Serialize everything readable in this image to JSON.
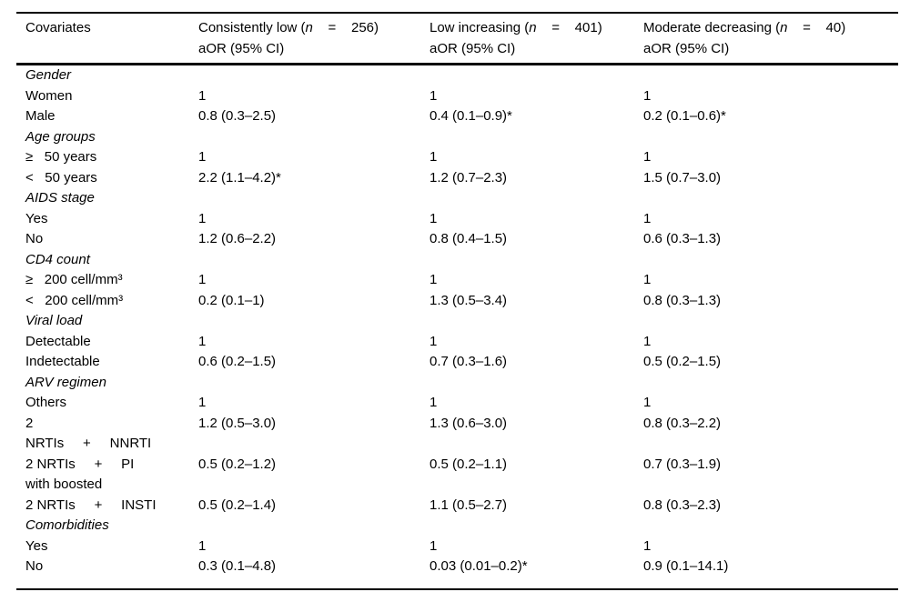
{
  "table": {
    "columns": {
      "covariates": "Covariates",
      "groups": [
        {
          "pre": "Consistently low (",
          "nvar": "n",
          "post": "    =    256)",
          "line2": "aOR (95% CI)"
        },
        {
          "pre": "Low increasing (",
          "nvar": "n",
          "post": "    =    401)",
          "line2": "aOR (95% CI)"
        },
        {
          "pre": "Moderate decreasing (",
          "nvar": "n",
          "post": "    =    40)",
          "line2": "aOR (95% CI)"
        }
      ]
    },
    "rows": [
      {
        "type": "category",
        "label": "Gender",
        "values": [
          "",
          "",
          ""
        ]
      },
      {
        "type": "data",
        "label": "Women",
        "values": [
          "1",
          "1",
          "1"
        ]
      },
      {
        "type": "data",
        "label": "Male",
        "values": [
          "0.8 (0.3–2.5)",
          "0.4 (0.1–0.9)*",
          "0.2 (0.1–0.6)*"
        ]
      },
      {
        "type": "category",
        "label": "Age groups",
        "values": [
          "",
          "",
          ""
        ]
      },
      {
        "type": "data",
        "label": "≥   50 years",
        "values": [
          "1",
          "1",
          "1"
        ]
      },
      {
        "type": "data",
        "label": "<   50 years",
        "values": [
          "2.2 (1.1–4.2)*",
          "1.2 (0.7–2.3)",
          "1.5 (0.7–3.0)"
        ]
      },
      {
        "type": "category",
        "label": "AIDS stage",
        "values": [
          "",
          "",
          ""
        ]
      },
      {
        "type": "data",
        "label": "Yes",
        "values": [
          "1",
          "1",
          "1"
        ]
      },
      {
        "type": "data",
        "label": "No",
        "values": [
          "1.2 (0.6–2.2)",
          "0.8 (0.4–1.5)",
          "0.6 (0.3–1.3)"
        ]
      },
      {
        "type": "category",
        "label": "CD4 count",
        "values": [
          "",
          "",
          ""
        ]
      },
      {
        "type": "data",
        "label": "≥   200 cell/mm³",
        "values": [
          "1",
          "1",
          "1"
        ]
      },
      {
        "type": "data",
        "label": "<   200 cell/mm³",
        "values": [
          "0.2 (0.1–1)",
          "1.3 (0.5–3.4)",
          "0.8 (0.3–1.3)"
        ]
      },
      {
        "type": "category",
        "label": "Viral load",
        "values": [
          "",
          "",
          ""
        ]
      },
      {
        "type": "data",
        "label": "Detectable",
        "values": [
          "1",
          "1",
          "1"
        ]
      },
      {
        "type": "data",
        "label": "Indetectable",
        "values": [
          "0.6 (0.2–1.5)",
          "0.7 (0.3–1.6)",
          "0.5 (0.2–1.5)"
        ]
      },
      {
        "type": "category",
        "label": "ARV regimen",
        "values": [
          "",
          "",
          ""
        ]
      },
      {
        "type": "data",
        "label": "Others",
        "values": [
          "1",
          "1",
          "1"
        ]
      },
      {
        "type": "data",
        "label": "2\nNRTIs     +     NNRTI",
        "values": [
          "1.2 (0.5–3.0)",
          "1.3 (0.6–3.0)",
          "0.8 (0.3–2.2)"
        ]
      },
      {
        "type": "data",
        "label": "2 NRTIs     +     PI\nwith boosted",
        "values": [
          "0.5 (0.2–1.2)",
          "0.5 (0.2–1.1)",
          "0.7 (0.3–1.9)"
        ]
      },
      {
        "type": "data",
        "label": "2 NRTIs     +     INSTI",
        "values": [
          "0.5 (0.2–1.4)",
          "1.1 (0.5–2.7)",
          "0.8 (0.3–2.3)"
        ]
      },
      {
        "type": "category",
        "label": "Comorbidities",
        "values": [
          "",
          "",
          ""
        ]
      },
      {
        "type": "data",
        "label": "Yes",
        "values": [
          "1",
          "1",
          "1"
        ]
      },
      {
        "type": "data",
        "label": "No",
        "values": [
          "0.3 (0.1–4.8)",
          "0.03 (0.01–0.2)*",
          "0.9 (0.1–14.1)"
        ]
      }
    ]
  }
}
